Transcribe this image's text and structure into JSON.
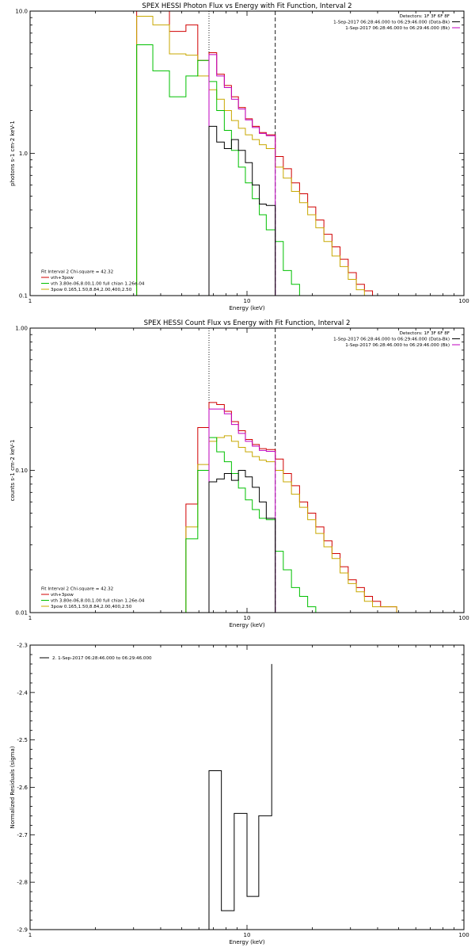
{
  "chart_data": [
    {
      "type": "line",
      "title": "SPEX HESSI Photon Flux vs Energy with Fit Function, Interval 2",
      "xlabel": "Energy (keV)",
      "ylabel": "photons s-1 cm-2 keV-1",
      "x_scale": "log",
      "y_scale": "log",
      "xlim": [
        1,
        100
      ],
      "ylim": [
        0.1,
        10
      ],
      "x_ticks": [
        {
          "v": 1,
          "label": "1"
        },
        {
          "v": 10,
          "label": "10"
        },
        {
          "v": 100,
          "label": "100"
        }
      ],
      "y_ticks": [
        {
          "v": 0.1,
          "label": "0.1"
        },
        {
          "v": 1,
          "label": "1.0"
        },
        {
          "v": 10,
          "label": "10.0"
        }
      ],
      "vlines": [
        {
          "x": 6.68,
          "style": "dotted"
        },
        {
          "x": 13.5,
          "style": "dashed"
        }
      ],
      "legend_top": [
        {
          "text": "Detectors: 1F 3F 6F 8F",
          "color": "#000000"
        },
        {
          "text": "1-Sep-2017 06:28:46.000 to 06:29:46.000 (Data-Bk)",
          "color": "#000000"
        },
        {
          "text": "1-Sep-2017 06:28:46.000 to 06:29:46.000 (Bk)",
          "color": "#c000c0"
        }
      ],
      "legend_bottom": [
        {
          "text": "Fit Interval 2   Chi-square = 42.32",
          "color": "#000000"
        },
        {
          "text": "vth+3pow",
          "color": "#d00000"
        },
        {
          "text": "vth 3.80e-06,8.00,1.00  full chian 1.26e-04",
          "color": "#00c000"
        },
        {
          "text": "3pow 0.165,1.50,8.84,2.00,400,2.50",
          "color": "#c8a800"
        }
      ],
      "series": [
        {
          "color": "#d00000",
          "edges": [
            3.1,
            3.68,
            4.39,
            5.23,
            5.93,
            6.68,
            7.25,
            7.86,
            8.48,
            9.13,
            9.83,
            10.58,
            11.4,
            12.27,
            13.5,
            14.7,
            16.03,
            17.47,
            19.04,
            20.75,
            22.62,
            24.65,
            26.86,
            29.28,
            31.91,
            34.78,
            37.9,
            41.3
          ],
          "values": [
            10,
            10,
            7.2,
            8.0,
            4.5,
            5.1,
            3.6,
            3.0,
            2.5,
            2.1,
            1.75,
            1.55,
            1.4,
            1.35,
            0.95,
            0.78,
            0.62,
            0.52,
            0.42,
            0.34,
            0.27,
            0.22,
            0.18,
            0.145,
            0.12,
            0.108,
            0.1
          ]
        },
        {
          "color": "#c8a800",
          "edges": [
            3.1,
            3.68,
            4.39,
            5.23,
            5.93,
            6.68,
            7.25,
            7.86,
            8.48,
            9.13,
            9.83,
            10.58,
            11.4,
            12.27,
            13.5,
            14.7,
            16.03,
            17.47,
            19.04,
            20.75,
            22.62,
            24.65,
            26.86,
            29.28,
            31.91,
            34.78,
            37.9,
            41.3
          ],
          "values": [
            9.2,
            8.0,
            5.0,
            4.9,
            3.5,
            2.8,
            2.4,
            2.0,
            1.7,
            1.5,
            1.35,
            1.25,
            1.15,
            1.08,
            0.8,
            0.67,
            0.54,
            0.45,
            0.37,
            0.3,
            0.24,
            0.19,
            0.16,
            0.13,
            0.11,
            0.1,
            0.1
          ]
        },
        {
          "color": "#00c000",
          "edges": [
            3.1,
            3.68,
            4.39,
            5.23,
            5.93,
            6.68,
            7.25,
            7.86,
            8.48,
            9.13,
            9.83,
            10.58,
            11.4,
            12.27,
            13.5,
            14.7,
            16.03,
            17.47,
            19.04
          ],
          "values": [
            5.8,
            3.8,
            2.5,
            3.5,
            4.5,
            3.2,
            2.0,
            1.45,
            1.05,
            0.8,
            0.62,
            0.48,
            0.37,
            0.29,
            0.24,
            0.15,
            0.12,
            0.1
          ]
        },
        {
          "color": "#c000c0",
          "edges": [
            6.68,
            7.25,
            7.86,
            8.48,
            9.13,
            9.83,
            10.58,
            11.4,
            12.27,
            13.5
          ],
          "values": [
            4.95,
            3.5,
            2.9,
            2.4,
            2.05,
            1.72,
            1.52,
            1.38,
            1.33
          ]
        },
        {
          "color": "#000000",
          "edges": [
            6.68,
            7.25,
            7.86,
            8.48,
            9.13,
            9.83,
            10.58,
            11.4,
            12.27,
            13.5
          ],
          "values": [
            1.55,
            1.2,
            1.08,
            1.25,
            1.05,
            0.86,
            0.6,
            0.44,
            0.43
          ]
        }
      ]
    },
    {
      "type": "line",
      "title": "SPEX HESSI Count Flux vs Energy with Fit Function, Interval 2",
      "xlabel": "Energy (keV)",
      "ylabel": "counts s-1 cm-2 keV-1",
      "x_scale": "log",
      "y_scale": "log",
      "xlim": [
        1,
        100
      ],
      "ylim": [
        0.01,
        1
      ],
      "x_ticks": [
        {
          "v": 1,
          "label": "1"
        },
        {
          "v": 10,
          "label": "10"
        },
        {
          "v": 100,
          "label": "100"
        }
      ],
      "y_ticks": [
        {
          "v": 0.01,
          "label": "0.01"
        },
        {
          "v": 0.1,
          "label": "0.10"
        },
        {
          "v": 1,
          "label": "1.00"
        }
      ],
      "vlines": [
        {
          "x": 6.68,
          "style": "dotted"
        },
        {
          "x": 13.5,
          "style": "dashed"
        }
      ],
      "legend_top": [
        {
          "text": "Detectors: 1F 3F 6F 8F",
          "color": "#000000"
        },
        {
          "text": "1-Sep-2017 06:28:46.000 to 06:29:46.000 (Data-Bk)",
          "color": "#000000"
        },
        {
          "text": "1-Sep-2017 06:28:46.000 to 06:29:46.000 (Bk)",
          "color": "#c000c0"
        }
      ],
      "legend_bottom": [
        {
          "text": "Fit Interval 2   Chi-square = 42.32",
          "color": "#000000"
        },
        {
          "text": "vth+3pow",
          "color": "#d00000"
        },
        {
          "text": "vth 3.80e-06,8.00,1.00  full chian 1.26e-04",
          "color": "#00c000"
        },
        {
          "text": "3pow 0.165,1.50,8.84,2.00,400,2.50",
          "color": "#c8a800"
        }
      ],
      "series": [
        {
          "color": "#d00000",
          "edges": [
            5.23,
            5.93,
            6.68,
            7.25,
            7.86,
            8.48,
            9.13,
            9.83,
            10.58,
            11.4,
            12.27,
            13.5,
            14.7,
            16.03,
            17.47,
            19.04,
            20.75,
            22.62,
            24.65,
            26.86,
            29.28,
            31.91,
            34.78,
            37.9,
            41.3,
            45.0,
            49.0,
            53.4
          ],
          "values": [
            0.058,
            0.2,
            0.3,
            0.29,
            0.26,
            0.22,
            0.19,
            0.165,
            0.152,
            0.142,
            0.14,
            0.12,
            0.095,
            0.078,
            0.06,
            0.05,
            0.04,
            0.032,
            0.026,
            0.021,
            0.017,
            0.015,
            0.013,
            0.012,
            0.011,
            0.011,
            0.01
          ]
        },
        {
          "color": "#c8a800",
          "edges": [
            5.23,
            5.93,
            6.68,
            7.25,
            7.86,
            8.48,
            9.13,
            9.83,
            10.58,
            11.4,
            12.27,
            13.5,
            14.7,
            16.03,
            17.47,
            19.04,
            20.75,
            22.62,
            24.65,
            26.86,
            29.28,
            31.91,
            34.78,
            37.9,
            41.3,
            45.0,
            49.0,
            53.4
          ],
          "values": [
            0.04,
            0.11,
            0.16,
            0.17,
            0.175,
            0.16,
            0.145,
            0.135,
            0.125,
            0.118,
            0.115,
            0.1,
            0.083,
            0.068,
            0.055,
            0.045,
            0.036,
            0.029,
            0.024,
            0.019,
            0.016,
            0.014,
            0.012,
            0.011,
            0.011,
            0.011,
            0.01
          ]
        },
        {
          "color": "#00c000",
          "edges": [
            5.23,
            5.93,
            6.68,
            7.25,
            7.86,
            8.48,
            9.13,
            9.83,
            10.58,
            11.4,
            12.27,
            13.5,
            14.7,
            16.03,
            17.47,
            19.04,
            20.75
          ],
          "values": [
            0.033,
            0.1,
            0.17,
            0.135,
            0.115,
            0.095,
            0.075,
            0.062,
            0.053,
            0.046,
            0.045,
            0.027,
            0.02,
            0.015,
            0.013,
            0.011
          ]
        },
        {
          "color": "#c000c0",
          "edges": [
            6.68,
            7.25,
            7.86,
            8.48,
            9.13,
            9.83,
            10.58,
            11.4,
            12.27,
            13.5
          ],
          "values": [
            0.27,
            0.27,
            0.25,
            0.21,
            0.182,
            0.16,
            0.148,
            0.138,
            0.136
          ]
        },
        {
          "color": "#000000",
          "edges": [
            6.68,
            7.25,
            7.86,
            8.48,
            9.13,
            9.83,
            10.58,
            11.4,
            12.27,
            13.5
          ],
          "values": [
            0.083,
            0.087,
            0.095,
            0.085,
            0.1,
            0.09,
            0.076,
            0.06,
            0.046
          ]
        }
      ]
    },
    {
      "type": "line",
      "title": "",
      "xlabel": "Energy (keV)",
      "ylabel": "Normalized Residuals (sigma)",
      "x_scale": "log",
      "y_scale": "linear",
      "xlim": [
        1,
        100
      ],
      "ylim": [
        -2.9,
        -2.3
      ],
      "x_ticks": [
        {
          "v": 1,
          "label": "1"
        },
        {
          "v": 10,
          "label": "10"
        },
        {
          "v": 100,
          "label": "100"
        }
      ],
      "y_ticks": [
        {
          "v": -2.9,
          "label": "-2.9"
        },
        {
          "v": -2.8,
          "label": "-2.8"
        },
        {
          "v": -2.7,
          "label": "-2.7"
        },
        {
          "v": -2.6,
          "label": "-2.6"
        },
        {
          "v": -2.5,
          "label": "-2.5"
        },
        {
          "v": -2.4,
          "label": "-2.4"
        },
        {
          "v": -2.3,
          "label": "-2.3"
        }
      ],
      "legend_top_left": [
        {
          "text": "2.  1-Sep-2017 06:28:46.000 to 06:29:46.000",
          "color": "#000000"
        }
      ],
      "series": [
        {
          "color": "#000000",
          "edges": [
            6.68,
            7.62,
            8.73,
            10.0,
            11.33,
            13.0
          ],
          "values": [
            -2.565,
            -2.86,
            -2.655,
            -2.83,
            -2.66,
            -2.34
          ]
        }
      ]
    }
  ]
}
